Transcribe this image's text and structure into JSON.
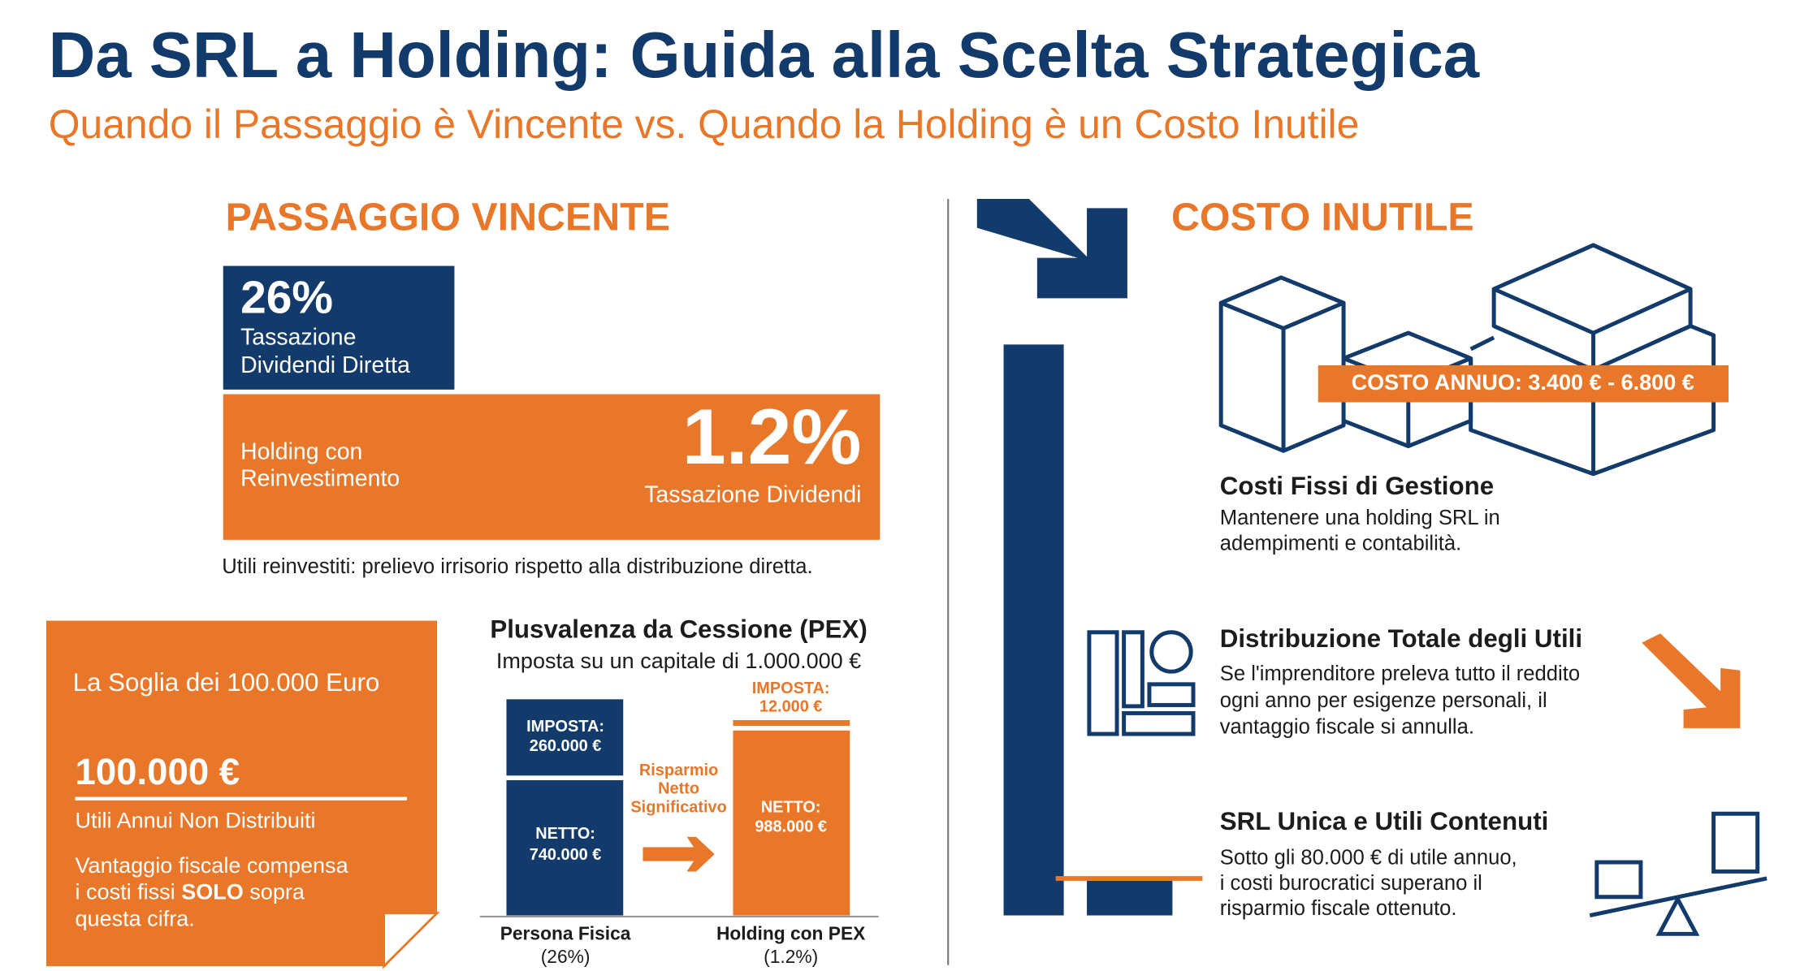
{
  "header": {
    "title": "Da SRL a Holding: Guida alla Scelta Strategica",
    "subtitle": "Quando il Passaggio è Vincente vs. Quando la Holding è un Costo Inutile"
  },
  "left": {
    "heading": "PASSAGGIO VINCENTE",
    "direct": {
      "value": "26%",
      "lines": [
        "Tassazione",
        "Dividendi Diretta"
      ]
    },
    "holding": {
      "lines": [
        "Holding con",
        "Reinvestimento"
      ],
      "value": "1.2%",
      "caption": "Tassazione Dividendi"
    },
    "note": "Utili reinvestiti: prelievo irrisorio rispetto alla distribuzione diretta.",
    "threshold": {
      "title": "La Soglia dei 100.000 Euro",
      "amount": "100.000 €",
      "amount_label": "Utili Annui Non Distribuiti",
      "line1": "Vantaggio fiscale compensa",
      "line2_start": "i costi fissi ",
      "line2_bold": "SOLO",
      "line2_end": " sopra",
      "line3": "questa cifra."
    },
    "pex": {
      "title": "Plusvalenza da Cessione (PEX)",
      "subtitle": "Imposta su un capitale di 1.000.000 €",
      "bars": [
        {
          "tax": [
            "IMPOSTA:",
            "260.000 €"
          ],
          "net": [
            "NETTO:",
            "740.000 €"
          ],
          "name": "Persona Fisica",
          "rate": "(26%)"
        },
        {
          "tax": [
            "IMPOSTA:",
            "12.000 €"
          ],
          "net": [
            "NETTO:",
            "988.000 €"
          ],
          "name": "Holding con PEX",
          "rate": "(1.2%)"
        }
      ],
      "savings": [
        "Risparmio",
        "Netto",
        "Significativo"
      ]
    }
  },
  "right": {
    "heading": "COSTO INUTILE",
    "cost_badge": "COSTO ANNUO: 3.400 € - 6.800 €",
    "items": [
      {
        "title": "Costi Fissi di Gestione",
        "lines": [
          "Mantenere una holding SRL in",
          "adempimenti e contabilità."
        ]
      },
      {
        "title": "Distribuzione Totale degli Utili",
        "lines": [
          "Se l'imprenditore preleva tutto il reddito",
          "ogni anno per esigenze personali, il",
          "vantaggio fiscale si annulla."
        ]
      },
      {
        "title": "SRL Unica e Utili Contenuti",
        "lines": [
          "Sotto gli 80.000 € di utile annuo,",
          "i costi burocratici superano il",
          "risparmio fiscale ottenuto."
        ]
      }
    ]
  }
}
